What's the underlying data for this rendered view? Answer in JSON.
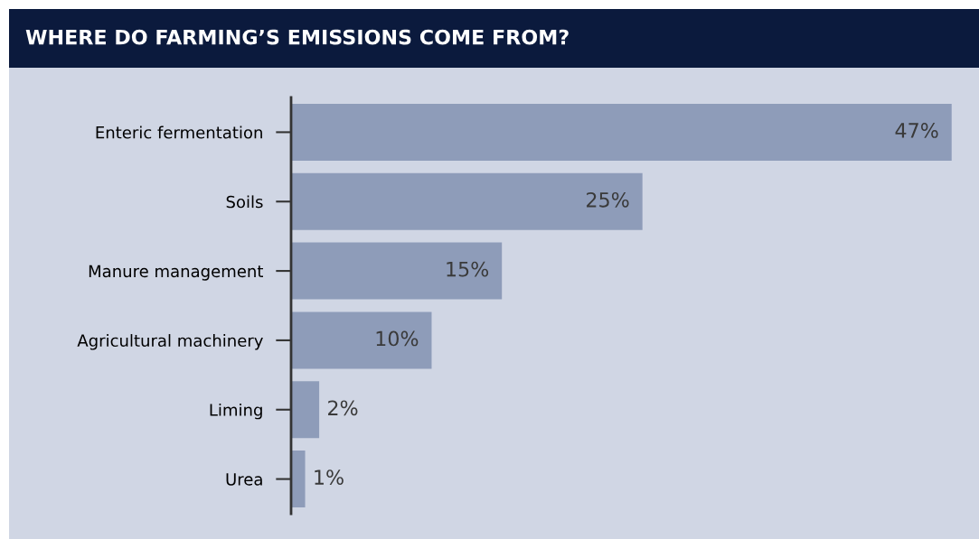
{
  "chart_data": {
    "type": "bar",
    "orientation": "horizontal",
    "title": "WHERE DO FARMING’S EMISSIONS COME FROM?",
    "categories": [
      "Enteric fermentation",
      "Soils",
      "Manure management",
      "Agricultural machinery",
      "Liming",
      "Urea"
    ],
    "values": [
      47,
      25,
      15,
      10,
      2,
      1
    ],
    "value_labels": [
      "47%",
      "25%",
      "15%",
      "10%",
      "2%",
      "1%"
    ],
    "color": "#8e9cb9",
    "grid": false,
    "legend": false,
    "tick_labels": "y"
  }
}
